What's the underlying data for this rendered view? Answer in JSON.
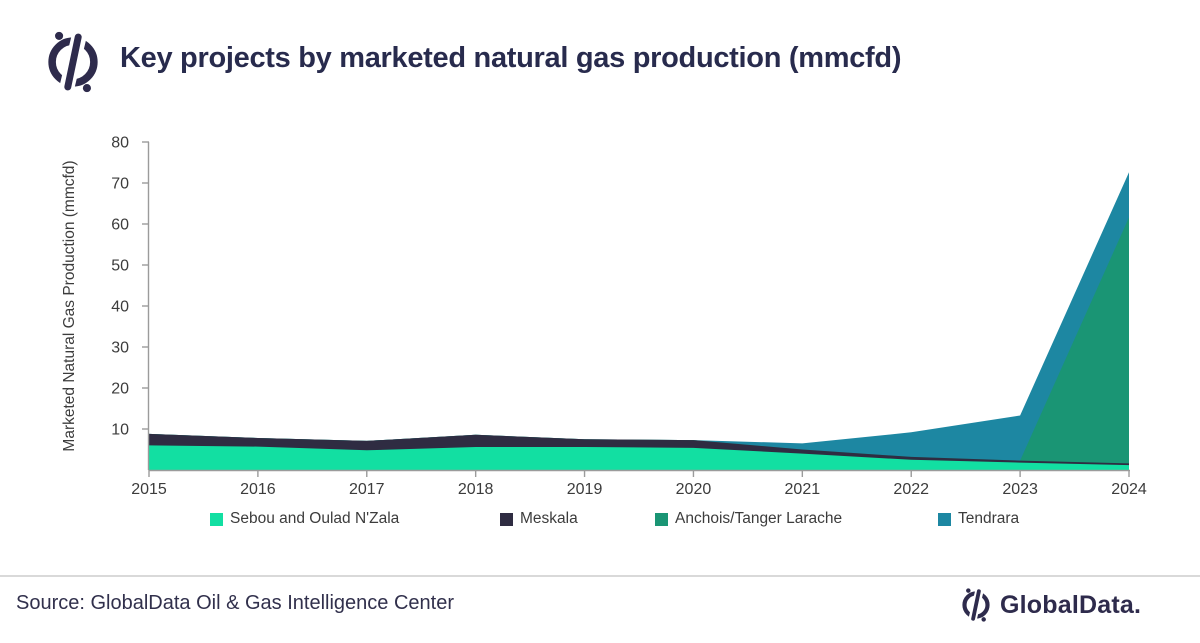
{
  "header": {
    "title": "Key projects by marketed natural gas production (mmcfd)"
  },
  "chart_data": {
    "type": "area",
    "stacked": true,
    "title": "Key projects by marketed natural gas production (mmcfd)",
    "xlabel": "",
    "ylabel": "Marketed Natural Gas Production (mmcfd)",
    "x": [
      2015,
      2016,
      2017,
      2018,
      2019,
      2020,
      2021,
      2022,
      2023,
      2024
    ],
    "series": [
      {
        "name": "Sebou and Oulad N'Zala",
        "color": "#12DFA2",
        "values": [
          6.0,
          5.7,
          4.8,
          5.6,
          5.6,
          5.4,
          4.0,
          2.5,
          1.8,
          1.2
        ]
      },
      {
        "name": "Meskala",
        "color": "#2F2C42",
        "values": [
          2.8,
          2.1,
          2.3,
          3.0,
          1.9,
          1.9,
          1.0,
          0.7,
          0.5,
          0.4
        ]
      },
      {
        "name": "Anchois/Tanger Larache",
        "color": "#1A9574",
        "values": [
          0,
          0,
          0,
          0,
          0,
          0,
          0,
          0,
          0,
          60.0
        ]
      },
      {
        "name": "Tendrara",
        "color": "#1D87A2",
        "values": [
          0,
          0,
          0,
          0,
          0,
          0,
          1.5,
          6.0,
          11.0,
          11.0
        ]
      }
    ],
    "ylim": [
      0,
      80
    ],
    "ytick_step": 10,
    "grid": false,
    "legend_position": "bottom"
  },
  "footer": {
    "source": "Source: GlobalData Oil & Gas Intelligence Center",
    "brand": "GlobalData."
  }
}
